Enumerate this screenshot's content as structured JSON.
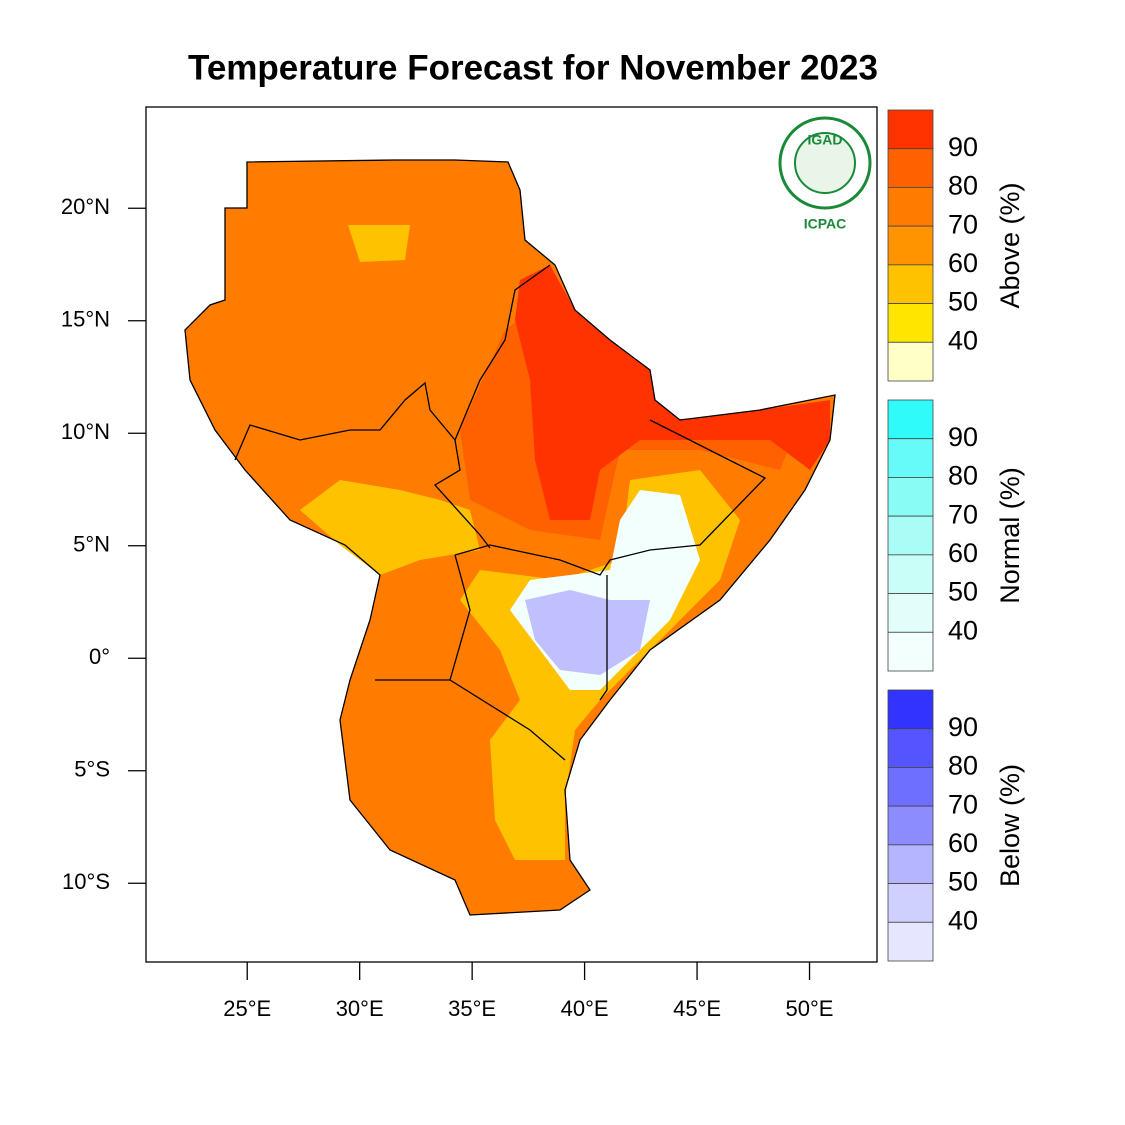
{
  "title": "Temperature Forecast for November 2023",
  "map": {
    "xlim": [
      20.5,
      53.0
    ],
    "ylim": [
      -13.5,
      24.5
    ],
    "xticks": [
      {
        "value": 25,
        "label": "25°E"
      },
      {
        "value": 30,
        "label": "30°E"
      },
      {
        "value": 35,
        "label": "35°E"
      },
      {
        "value": 40,
        "label": "40°E"
      },
      {
        "value": 45,
        "label": "45°E"
      },
      {
        "value": 50,
        "label": "50°E"
      }
    ],
    "yticks": [
      {
        "value": 20,
        "label": "20°N"
      },
      {
        "value": 15,
        "label": "15°N"
      },
      {
        "value": 10,
        "label": "10°N"
      },
      {
        "value": 5,
        "label": "5°N"
      },
      {
        "value": 0,
        "label": "0°"
      },
      {
        "value": -5,
        "label": "5°S"
      },
      {
        "value": -10,
        "label": "10°S"
      }
    ]
  },
  "logo": {
    "name": "IGAD",
    "org": "ICPAC"
  },
  "legend": [
    {
      "title": "Above (%)",
      "labels": [
        90,
        80,
        70,
        60,
        50,
        40
      ],
      "colors": [
        "#ff3300",
        "#ff6000",
        "#ff7c00",
        "#ff9400",
        "#ffc200",
        "#ffe600",
        "#ffffc8"
      ]
    },
    {
      "title": "Normal (%)",
      "labels": [
        90,
        80,
        70,
        60,
        50,
        40
      ],
      "colors": [
        "#30fbfb",
        "#66fbf8",
        "#88fcf5",
        "#aafdf6",
        "#c8fdf8",
        "#e2fefb",
        "#f2fffd"
      ]
    },
    {
      "title": "Below (%)",
      "labels": [
        90,
        80,
        70,
        60,
        50,
        40
      ],
      "colors": [
        "#3333ff",
        "#5555ff",
        "#6e6eff",
        "#8c8cff",
        "#b4b4ff",
        "#d0d0ff",
        "#e6e6ff"
      ]
    }
  ]
}
